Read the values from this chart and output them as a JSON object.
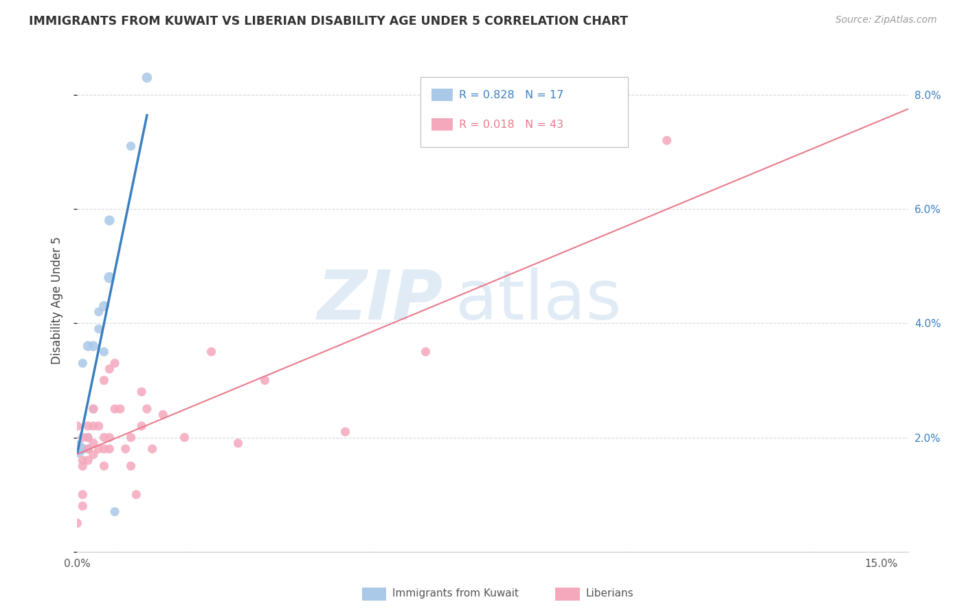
{
  "title": "IMMIGRANTS FROM KUWAIT VS LIBERIAN DISABILITY AGE UNDER 5 CORRELATION CHART",
  "source": "Source: ZipAtlas.com",
  "ylabel": "Disability Age Under 5",
  "legend_label1": "Immigrants from Kuwait",
  "legend_label2": "Liberians",
  "legend_r1": "R = 0.828",
  "legend_n1": "N = 17",
  "legend_r2": "R = 0.018",
  "legend_n2": "N = 43",
  "kuwait_color": "#aac8e8",
  "liberian_color": "#f5a8bc",
  "kuwait_line_color": "#3a7fc1",
  "liberian_line_color": "#e87a8c",
  "kuwait_x": [
    0.0,
    0.001,
    0.001,
    0.002,
    0.002,
    0.002,
    0.003,
    0.003,
    0.004,
    0.004,
    0.005,
    0.005,
    0.006,
    0.006,
    0.007,
    0.01,
    0.013
  ],
  "kuwait_y": [
    0.018,
    0.018,
    0.033,
    0.018,
    0.02,
    0.036,
    0.025,
    0.036,
    0.039,
    0.042,
    0.035,
    0.043,
    0.048,
    0.058,
    0.007,
    0.071,
    0.083
  ],
  "kuwait_sizes": [
    300,
    80,
    80,
    80,
    80,
    100,
    80,
    100,
    80,
    80,
    80,
    100,
    120,
    100,
    80,
    80,
    100
  ],
  "liberian_x": [
    0.0,
    0.0,
    0.001,
    0.001,
    0.001,
    0.001,
    0.001,
    0.002,
    0.002,
    0.002,
    0.002,
    0.003,
    0.003,
    0.003,
    0.003,
    0.004,
    0.004,
    0.005,
    0.005,
    0.005,
    0.005,
    0.006,
    0.006,
    0.006,
    0.007,
    0.007,
    0.008,
    0.009,
    0.01,
    0.01,
    0.011,
    0.012,
    0.012,
    0.013,
    0.014,
    0.016,
    0.02,
    0.025,
    0.03,
    0.035,
    0.05,
    0.065,
    0.11
  ],
  "liberian_y": [
    0.005,
    0.022,
    0.008,
    0.01,
    0.015,
    0.016,
    0.02,
    0.016,
    0.018,
    0.02,
    0.022,
    0.017,
    0.019,
    0.022,
    0.025,
    0.018,
    0.022,
    0.015,
    0.018,
    0.02,
    0.03,
    0.018,
    0.02,
    0.032,
    0.025,
    0.033,
    0.025,
    0.018,
    0.015,
    0.02,
    0.01,
    0.022,
    0.028,
    0.025,
    0.018,
    0.024,
    0.02,
    0.035,
    0.019,
    0.03,
    0.021,
    0.035,
    0.072
  ],
  "liberian_sizes": [
    80,
    80,
    80,
    80,
    80,
    80,
    80,
    80,
    80,
    80,
    80,
    80,
    80,
    80,
    80,
    80,
    80,
    80,
    80,
    80,
    80,
    80,
    80,
    80,
    80,
    80,
    80,
    80,
    80,
    80,
    80,
    80,
    80,
    80,
    80,
    80,
    80,
    80,
    80,
    80,
    80,
    80,
    80
  ],
  "xlim": [
    0.0,
    0.155
  ],
  "ylim": [
    0.0,
    0.088
  ],
  "yticks": [
    0.0,
    0.02,
    0.04,
    0.06,
    0.08
  ],
  "yticklabels_right": [
    "",
    "2.0%",
    "4.0%",
    "6.0%",
    "8.0%"
  ],
  "grid_color": "#d0d0d0"
}
